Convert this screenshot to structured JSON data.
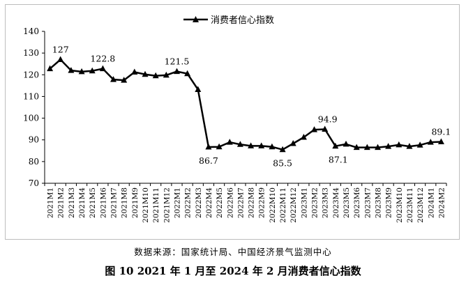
{
  "chart_data": {
    "type": "line",
    "title": "",
    "xlabel": "",
    "ylabel": "",
    "ylim": [
      70,
      140
    ],
    "yticks": [
      70,
      80,
      90,
      100,
      110,
      120,
      130,
      140
    ],
    "grid": false,
    "legend_position": "top-center",
    "categories": [
      "2021M1",
      "2021M2",
      "2021M3",
      "2021M4",
      "2021M5",
      "2021M6",
      "2021M7",
      "2021M8",
      "2021M9",
      "2021M10",
      "2021M11",
      "2021M12",
      "2022M1",
      "2022M2",
      "2022M3",
      "2022M4",
      "2022M5",
      "2022M6",
      "2022M7",
      "2022M8",
      "2022M9",
      "2022M10",
      "2022M11",
      "2022M12",
      "2023M1",
      "2023M2",
      "2023M3",
      "2023M4",
      "2023M5",
      "2023M6",
      "2023M7",
      "2023M8",
      "2023M9",
      "2023M10",
      "2023M11",
      "2023M12",
      "2024M1",
      "2024M2"
    ],
    "series": [
      {
        "name": "消费者信心指数",
        "color": "#000000",
        "marker": "triangle",
        "values": [
          122.8,
          127.0,
          122.0,
          121.4,
          121.8,
          122.8,
          117.8,
          117.5,
          121.2,
          120.2,
          119.5,
          119.8,
          121.5,
          120.5,
          113.2,
          86.7,
          86.8,
          88.9,
          87.9,
          87.2,
          87.2,
          86.8,
          85.5,
          88.3,
          91.2,
          94.7,
          94.9,
          87.1,
          88.0,
          86.5,
          86.5,
          86.5,
          87.0,
          87.7,
          87.0,
          87.6,
          88.9,
          89.1
        ]
      }
    ],
    "data_labels": [
      {
        "index": 1,
        "text": "127"
      },
      {
        "index": 5,
        "text": "122.8"
      },
      {
        "index": 12,
        "text": "121.5"
      },
      {
        "index": 15,
        "text": "86.7"
      },
      {
        "index": 22,
        "text": "85.5"
      },
      {
        "index": 26,
        "text": "94.9"
      },
      {
        "index": 27,
        "text": "87.1"
      },
      {
        "index": 37,
        "text": "89.1"
      }
    ]
  },
  "source_text": "数据来源：国家统计局、中国经济景气监测中心",
  "caption": "图 10  2021 年 1 月至 2024 年 2 月消费者信心指数"
}
